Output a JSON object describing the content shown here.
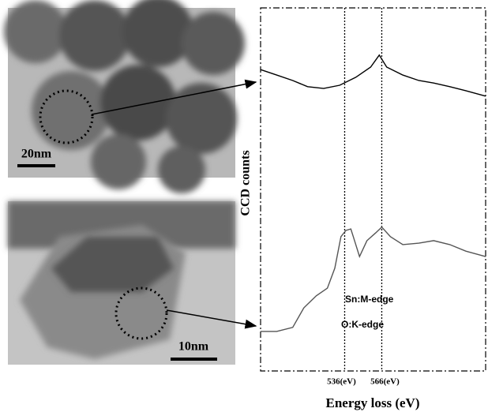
{
  "images": [
    {
      "scale_bar": "20nm"
    },
    {
      "scale_bar": "10nm"
    }
  ],
  "chart_data": {
    "type": "line",
    "xlabel": "Energy loss (eV)",
    "ylabel": "CCD counts",
    "xlim": [
      468,
      650
    ],
    "ylim": [
      0,
      100
    ],
    "xticks": [
      {
        "value": 536,
        "label": "536(eV)"
      },
      {
        "value": 566,
        "label": "566(eV)"
      }
    ],
    "annotations": [
      "Sn:M-edge",
      "O:K-edge"
    ],
    "series": [
      {
        "color": "#000000",
        "x": [
          468,
          481,
          494,
          506,
          519,
          532,
          545,
          557,
          564,
          570,
          583,
          596,
          608,
          621,
          634,
          650
        ],
        "values": [
          83.0,
          81.5,
          80.0,
          78.3,
          77.8,
          78.7,
          80.9,
          83.7,
          87.0,
          83.7,
          81.5,
          80.0,
          79.3,
          78.3,
          77.2,
          75.7
        ]
      },
      {
        "color": "#555555",
        "x": [
          468,
          481,
          494,
          503,
          513,
          522,
          528,
          533,
          537,
          541,
          543,
          548,
          554,
          561,
          566,
          573,
          583,
          596,
          608,
          621,
          634,
          650
        ],
        "values": [
          10.9,
          10.9,
          12.0,
          17.4,
          20.7,
          22.8,
          28.3,
          37.0,
          38.7,
          39.1,
          37.0,
          31.5,
          35.9,
          38.0,
          39.6,
          37.0,
          34.8,
          35.2,
          35.9,
          34.8,
          33.0,
          31.5
        ]
      }
    ]
  }
}
